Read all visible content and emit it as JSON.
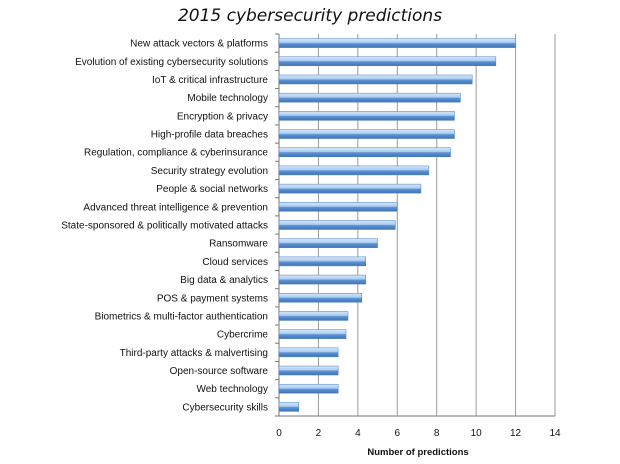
{
  "chart_data": {
    "type": "bar",
    "orientation": "horizontal",
    "title": "2015 cybersecurity predictions",
    "xlabel": "Number of predictions",
    "ylabel": "",
    "xlim": [
      0,
      14
    ],
    "xticks": [
      "0",
      "2",
      "4",
      "6",
      "8",
      "10",
      "12",
      "14"
    ],
    "grid": true,
    "bar_color": "#6fa3dc",
    "categories": [
      "New attack vectors & platforms",
      "Evolution of existing cybersecurity solutions",
      "IoT & critical infrastructure",
      "Mobile technology",
      "Encryption & privacy",
      "High-profile data breaches",
      "Regulation, compliance & cyberinsurance",
      "Security strategy evolution",
      "People & social networks",
      "Advanced threat intelligence & prevention",
      "State-sponsored & politically motivated attacks",
      "Ransomware",
      "Cloud services",
      "Big data & analytics",
      "POS & payment systems",
      "Biometrics & multi-factor authentication",
      "Cybercrime",
      "Third-party attacks & malvertising",
      "Open-source software",
      "Web technology",
      "Cybersecurity skills"
    ],
    "values": [
      12,
      11,
      9.8,
      9.2,
      8.9,
      8.9,
      8.7,
      7.6,
      7.2,
      6.0,
      5.9,
      5.0,
      4.4,
      4.4,
      4.2,
      3.5,
      3.4,
      3.0,
      3.0,
      3.0,
      1.0
    ]
  }
}
